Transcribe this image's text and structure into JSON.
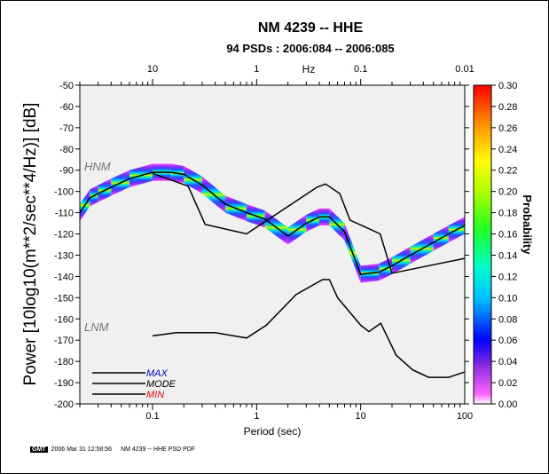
{
  "chart_data": {
    "type": "heatmap",
    "title": "NM 4239 -- HHE",
    "subtitle": "94 PSDs : 2006:084 -- 2006:085",
    "xlabel": "Period (sec)",
    "ylabel": "Power [10log10(m**2/sec**4/Hz)] [dB]",
    "top_axis_label": "Hz",
    "colorbar_label": "Probability",
    "x_scale": "log",
    "xlim": [
      0.02,
      100
    ],
    "ylim": [
      -200,
      -50
    ],
    "x_ticks": [
      0.1,
      1,
      10,
      100
    ],
    "x_tick_labels": [
      "0.1",
      "1",
      "10",
      "100"
    ],
    "top_ticks": [
      10,
      1,
      0.1,
      0.01
    ],
    "top_tick_labels": [
      "10",
      "1",
      "0.1",
      "0.01"
    ],
    "y_ticks": [
      -50,
      -60,
      -70,
      -80,
      -90,
      -100,
      -110,
      -120,
      -130,
      -140,
      -150,
      -160,
      -170,
      -180,
      -190,
      -200
    ],
    "y_tick_labels": [
      "-50",
      "-60",
      "-70",
      "-80",
      "-90",
      "-100",
      "-110",
      "-120",
      "-130",
      "-140",
      "-150",
      "-160",
      "-170",
      "-180",
      "-190",
      "-200"
    ],
    "colorbar_range": [
      0.0,
      0.3
    ],
    "colorbar_ticks": [
      0.0,
      0.02,
      0.04,
      0.06,
      0.08,
      0.1,
      0.12,
      0.14,
      0.16,
      0.18,
      0.2,
      0.22,
      0.24,
      0.26,
      0.28,
      0.3
    ],
    "colorbar_tick_labels": [
      "0.00",
      "0.02",
      "0.04",
      "0.06",
      "0.08",
      "0.10",
      "0.12",
      "0.14",
      "0.16",
      "0.18",
      "0.20",
      "0.22",
      "0.24",
      "0.26",
      "0.28",
      "0.30"
    ],
    "annotations": [
      "HNM",
      "LNM"
    ],
    "legend": [
      {
        "label": "MAX",
        "color": "#0000cc"
      },
      {
        "label": "MODE",
        "color": "#000000"
      },
      {
        "label": "MIN",
        "color": "#dd0000"
      }
    ],
    "legend_position": "bottom-left",
    "band_halfwidth_db": 4,
    "mode_curve": [
      {
        "x": 0.02,
        "y": -110
      },
      {
        "x": 0.025,
        "y": -103
      },
      {
        "x": 0.03,
        "y": -101
      },
      {
        "x": 0.04,
        "y": -98
      },
      {
        "x": 0.06,
        "y": -94
      },
      {
        "x": 0.1,
        "y": -91
      },
      {
        "x": 0.15,
        "y": -91
      },
      {
        "x": 0.2,
        "y": -92
      },
      {
        "x": 0.3,
        "y": -97
      },
      {
        "x": 0.5,
        "y": -106
      },
      {
        "x": 0.8,
        "y": -110
      },
      {
        "x": 1.2,
        "y": -113
      },
      {
        "x": 2,
        "y": -121
      },
      {
        "x": 3,
        "y": -115
      },
      {
        "x": 4,
        "y": -112
      },
      {
        "x": 5,
        "y": -112
      },
      {
        "x": 7,
        "y": -119
      },
      {
        "x": 10,
        "y": -139
      },
      {
        "x": 15,
        "y": -138
      },
      {
        "x": 20,
        "y": -135
      },
      {
        "x": 30,
        "y": -130
      },
      {
        "x": 50,
        "y": -124
      },
      {
        "x": 70,
        "y": -120
      },
      {
        "x": 100,
        "y": -116
      }
    ],
    "hnm": [
      {
        "x": 0.1,
        "y": -91.5
      },
      {
        "x": 0.22,
        "y": -97.5
      },
      {
        "x": 0.32,
        "y": -115.5
      },
      {
        "x": 0.8,
        "y": -120
      },
      {
        "x": 3.8,
        "y": -98
      },
      {
        "x": 4.6,
        "y": -96.5
      },
      {
        "x": 6.3,
        "y": -101
      },
      {
        "x": 7.9,
        "y": -113.5
      },
      {
        "x": 15.4,
        "y": -120
      },
      {
        "x": 20,
        "y": -138.5
      },
      {
        "x": 100,
        "y": -131.5
      }
    ],
    "lnm": [
      {
        "x": 0.1,
        "y": -168
      },
      {
        "x": 0.17,
        "y": -166.5
      },
      {
        "x": 0.4,
        "y": -166.5
      },
      {
        "x": 0.8,
        "y": -169
      },
      {
        "x": 1.24,
        "y": -163
      },
      {
        "x": 2.4,
        "y": -148.5
      },
      {
        "x": 4.3,
        "y": -141.5
      },
      {
        "x": 5,
        "y": -141.5
      },
      {
        "x": 6,
        "y": -150
      },
      {
        "x": 10,
        "y": -163
      },
      {
        "x": 12,
        "y": -166
      },
      {
        "x": 15.6,
        "y": -162
      },
      {
        "x": 21.9,
        "y": -177
      },
      {
        "x": 31.6,
        "y": -184
      },
      {
        "x": 45,
        "y": -187.5
      },
      {
        "x": 70,
        "y": -187.5
      },
      {
        "x": 100,
        "y": -185
      }
    ]
  },
  "footer": {
    "logo": "GMT",
    "timestamp": "2006 Mar 31 12:58:56",
    "caption": "NM 4239 -- HHE PSD PDF"
  }
}
